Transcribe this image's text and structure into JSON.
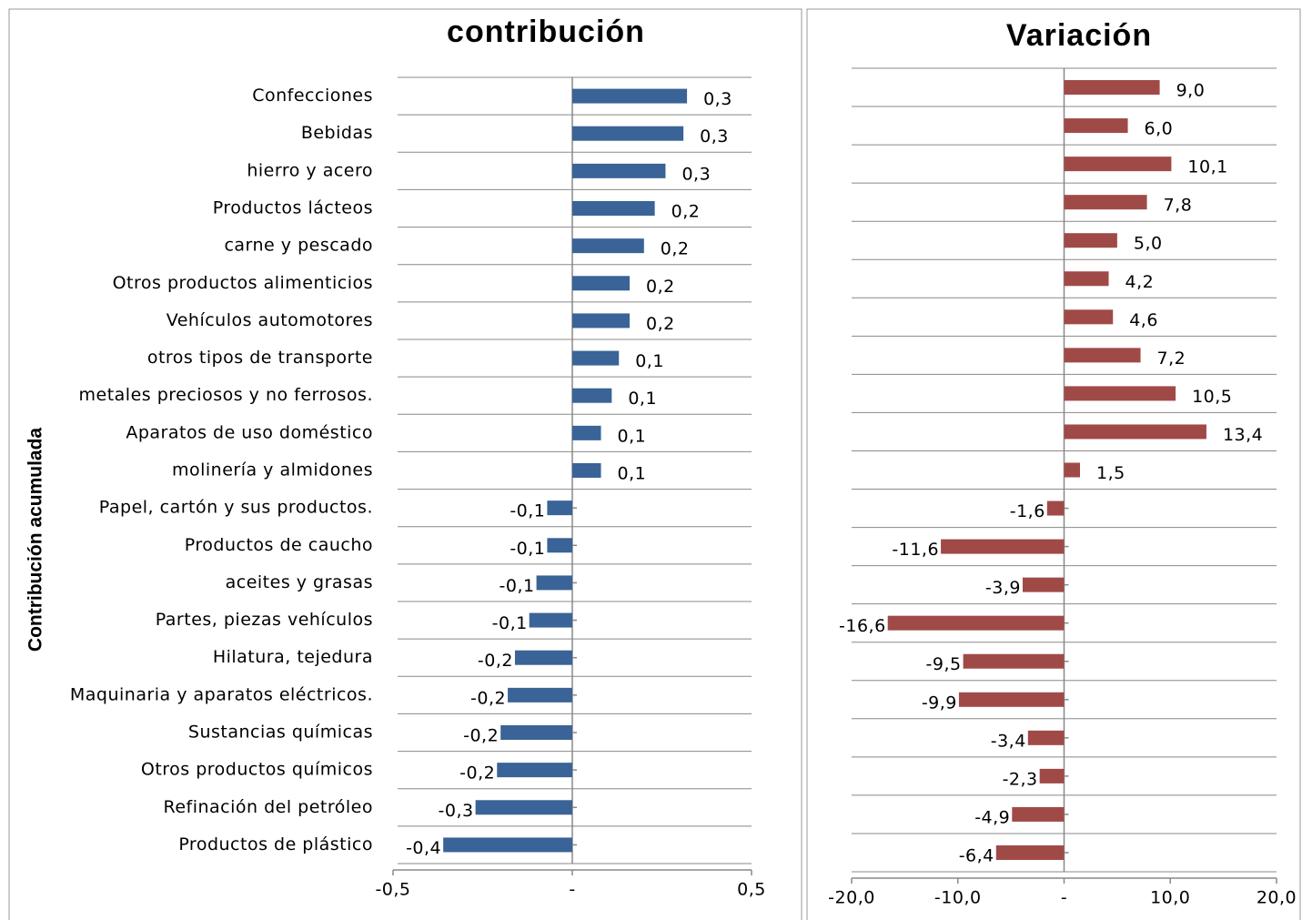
{
  "chart_data": [
    {
      "type": "bar",
      "orientation": "horizontal",
      "title": "contribución",
      "y_label": "Contribución acumulada",
      "color": "#3a6397",
      "categories": [
        "Confecciones",
        "Bebidas",
        "hierro y acero",
        "Productos lácteos",
        "carne y pescado",
        "Otros productos alimenticios",
        "Vehículos automotores",
        "otros tipos de transporte",
        "metales preciosos  y no ferrosos.",
        "Aparatos de uso doméstico",
        "molinería y almidones",
        "Papel, cartón y sus productos.",
        "Productos de caucho",
        "aceites y grasas",
        "Partes, piezas vehículos",
        "Hilatura, tejedura",
        "Maquinaria y aparatos eléctricos.",
        "Sustancias químicas",
        "Otros productos químicos",
        "Refinación del petróleo",
        "Productos de plástico"
      ],
      "values": [
        0.32,
        0.31,
        0.26,
        0.23,
        0.2,
        0.16,
        0.16,
        0.13,
        0.11,
        0.08,
        0.08,
        -0.07,
        -0.07,
        -0.1,
        -0.12,
        -0.16,
        -0.18,
        -0.2,
        -0.21,
        -0.27,
        -0.36
      ],
      "value_labels": [
        "0,3",
        "0,3",
        "0,3",
        "0,2",
        "0,2",
        "0,2",
        "0,2",
        "0,1",
        "0,1",
        "0,1",
        "0,1",
        "-0,1",
        "-0,1",
        "-0,1",
        "-0,1",
        "-0,2",
        "-0,2",
        "-0,2",
        "-0,2",
        "-0,3",
        "-0,4"
      ],
      "xlim": [
        -0.5,
        0.5
      ],
      "xticks": [
        {
          "value": -0.5,
          "label": "-0,5"
        },
        {
          "value": 0,
          "label": "-"
        },
        {
          "value": 0.5,
          "label": "0,5"
        }
      ],
      "grid": true
    },
    {
      "type": "bar",
      "orientation": "horizontal",
      "title": "Variación",
      "color": "#a04a48",
      "values": [
        9.0,
        6.0,
        10.1,
        7.8,
        5.0,
        4.2,
        4.6,
        7.2,
        10.5,
        13.4,
        1.5,
        -1.6,
        -11.6,
        -3.9,
        -16.6,
        -9.5,
        -9.9,
        -3.4,
        -2.3,
        -4.9,
        -6.4
      ],
      "value_labels": [
        "9,0",
        "6,0",
        "10,1",
        "7,8",
        "5,0",
        "4,2",
        "4,6",
        "7,2",
        "10,5",
        "13,4",
        "1,5",
        "-1,6",
        "-11,6",
        "-3,9",
        "-16,6",
        "-9,5",
        "-9,9",
        "-3,4",
        "-2,3",
        "-4,9",
        "-6,4"
      ],
      "xlim": [
        -20,
        20
      ],
      "xticks": [
        {
          "value": -20,
          "label": "-20,0"
        },
        {
          "value": -10,
          "label": "-10,0"
        },
        {
          "value": 0,
          "label": "-"
        },
        {
          "value": 10,
          "label": "10,0"
        },
        {
          "value": 20,
          "label": "20,0"
        }
      ],
      "grid": true
    }
  ]
}
